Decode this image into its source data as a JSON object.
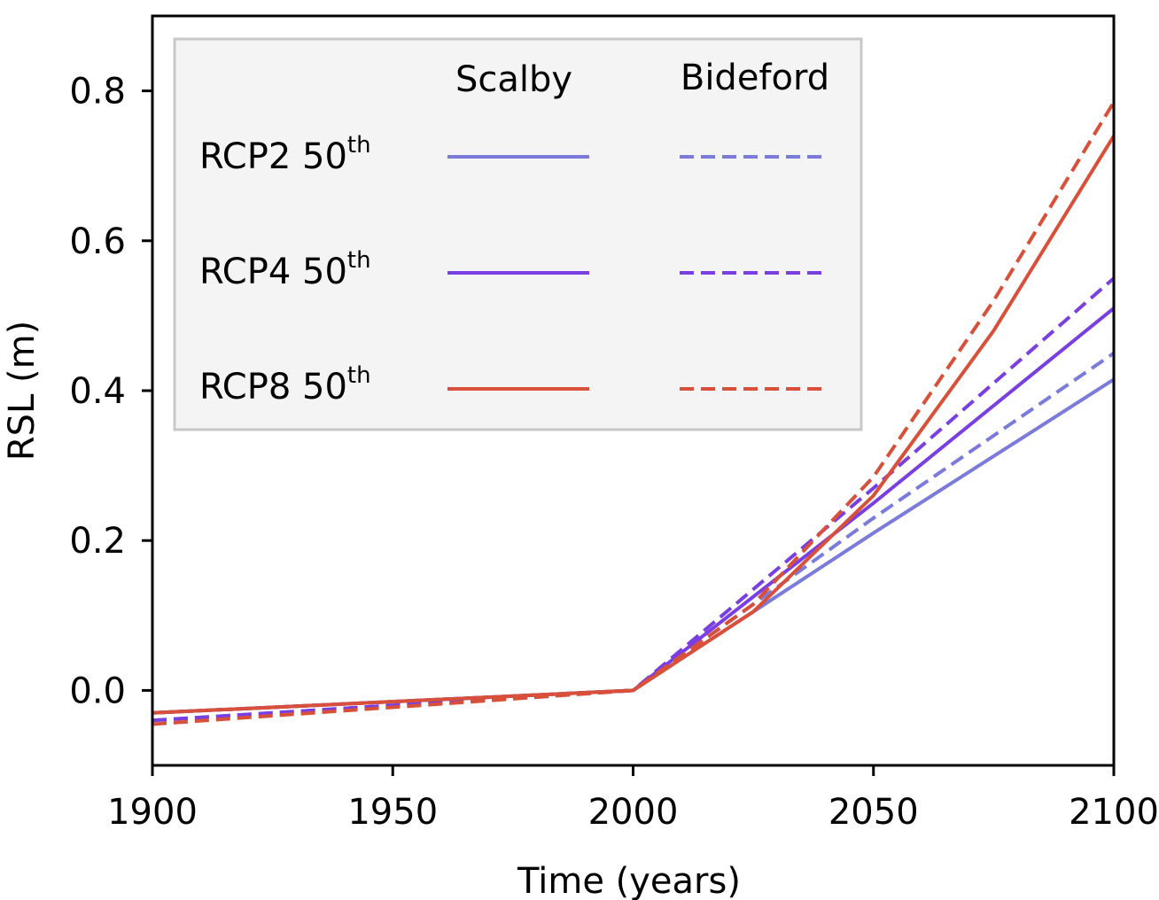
{
  "chart_data": {
    "type": "line",
    "xlabel": "Time (years)",
    "ylabel": "RSL (m)",
    "xlim": [
      1900,
      2100
    ],
    "ylim": [
      -0.1,
      0.9
    ],
    "xticks": [
      1900,
      1950,
      2000,
      2050,
      2100
    ],
    "xtick_labels": [
      "1900",
      "1950",
      "2000",
      "2050",
      "2100"
    ],
    "yticks": [
      0.0,
      0.2,
      0.4,
      0.6,
      0.8
    ],
    "ytick_labels": [
      "0.0",
      "0.2",
      "0.4",
      "0.6",
      "0.8"
    ],
    "grid": false,
    "legend": {
      "placement": "top-left",
      "column_headers": [
        "Scalby",
        "Bideford"
      ],
      "rows": [
        {
          "label": "RCP2 50",
          "sup": "th",
          "color": "#7b7bdc"
        },
        {
          "label": "RCP4 50",
          "sup": "th",
          "color": "#7a3fe0"
        },
        {
          "label": "RCP8 50",
          "sup": "th",
          "color": "#d9503a"
        }
      ]
    },
    "series": [
      {
        "site": "Scalby",
        "scenario": "RCP2 50th",
        "color": "#7b7bdc",
        "dashed": false,
        "points": [
          [
            1900,
            -0.03
          ],
          [
            2000,
            0.0
          ],
          [
            2050,
            0.21
          ],
          [
            2100,
            0.415
          ]
        ]
      },
      {
        "site": "Bideford",
        "scenario": "RCP2 50th",
        "color": "#7b7bdc",
        "dashed": true,
        "points": [
          [
            1900,
            -0.04
          ],
          [
            2000,
            0.0
          ],
          [
            2050,
            0.23
          ],
          [
            2100,
            0.45
          ]
        ]
      },
      {
        "site": "Scalby",
        "scenario": "RCP4 50th",
        "color": "#7a3fe0",
        "dashed": false,
        "points": [
          [
            1900,
            -0.03
          ],
          [
            2000,
            0.0
          ],
          [
            2050,
            0.25
          ],
          [
            2100,
            0.51
          ]
        ]
      },
      {
        "site": "Bideford",
        "scenario": "RCP4 50th",
        "color": "#7a3fe0",
        "dashed": true,
        "points": [
          [
            1900,
            -0.04
          ],
          [
            2000,
            0.0
          ],
          [
            2050,
            0.27
          ],
          [
            2100,
            0.55
          ]
        ]
      },
      {
        "site": "Scalby",
        "scenario": "RCP8 50th",
        "color": "#d9503a",
        "dashed": false,
        "points": [
          [
            1900,
            -0.03
          ],
          [
            2000,
            0.0
          ],
          [
            2025,
            0.105
          ],
          [
            2050,
            0.26
          ],
          [
            2075,
            0.48
          ],
          [
            2100,
            0.74
          ]
        ]
      },
      {
        "site": "Bideford",
        "scenario": "RCP8 50th",
        "color": "#d9503a",
        "dashed": true,
        "points": [
          [
            1900,
            -0.045
          ],
          [
            2000,
            0.0
          ],
          [
            2025,
            0.115
          ],
          [
            2050,
            0.285
          ],
          [
            2075,
            0.52
          ],
          [
            2100,
            0.785
          ]
        ]
      }
    ]
  }
}
